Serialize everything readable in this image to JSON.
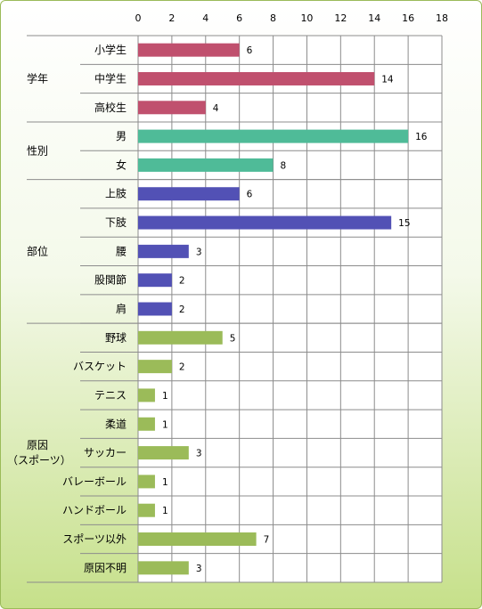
{
  "chart_data": {
    "type": "bar",
    "orientation": "horizontal",
    "xlim": [
      0,
      18
    ],
    "xticks": [
      "0",
      "2",
      "4",
      "6",
      "8",
      "10",
      "12",
      "14",
      "16",
      "18"
    ],
    "grid": true,
    "groups": [
      {
        "label": "学年",
        "label_lines": [
          "学年"
        ],
        "color": "#c0506e",
        "items": [
          {
            "label": "小学生",
            "value": 6
          },
          {
            "label": "中学生",
            "value": 14
          },
          {
            "label": "高校生",
            "value": 4
          }
        ]
      },
      {
        "label": "性別",
        "label_lines": [
          "性別"
        ],
        "color": "#4fbb98",
        "items": [
          {
            "label": "男",
            "value": 16
          },
          {
            "label": "女",
            "value": 8
          }
        ]
      },
      {
        "label": "部位",
        "label_lines": [
          "部位"
        ],
        "color": "#5251b5",
        "items": [
          {
            "label": "上肢",
            "value": 6
          },
          {
            "label": "下肢",
            "value": 15
          },
          {
            "label": "腰",
            "value": 3
          },
          {
            "label": "股関節",
            "value": 2
          },
          {
            "label": "肩",
            "value": 2
          }
        ]
      },
      {
        "label": "原因（スポーツ）",
        "label_lines": [
          "原因",
          "（スポーツ）"
        ],
        "color": "#9bbb59",
        "items": [
          {
            "label": "野球",
            "value": 5
          },
          {
            "label": "バスケット",
            "value": 2
          },
          {
            "label": "テニス",
            "value": 1
          },
          {
            "label": "柔道",
            "value": 1
          },
          {
            "label": "サッカー",
            "value": 3
          },
          {
            "label": "バレーボール",
            "value": 1
          },
          {
            "label": "ハンドボール",
            "value": 1
          },
          {
            "label": "スポーツ以外",
            "value": 7
          },
          {
            "label": "原因不明",
            "value": 3
          }
        ]
      }
    ]
  }
}
